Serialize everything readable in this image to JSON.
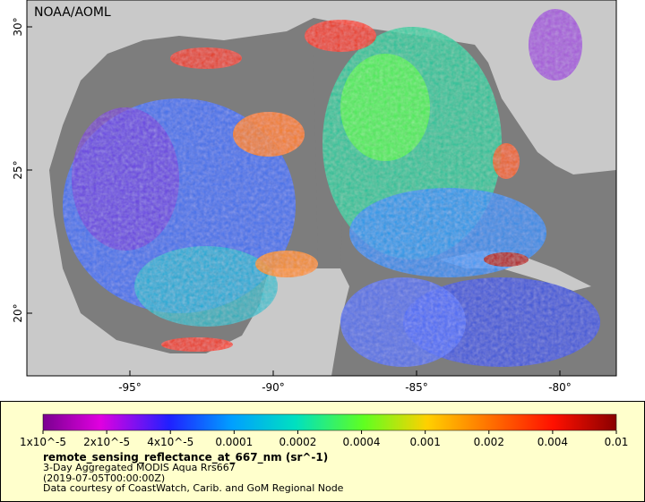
{
  "map": {
    "label": "NOAA/AOML",
    "lat_ticks": [
      {
        "value": 30,
        "label": "30°"
      },
      {
        "value": 25,
        "label": "25°"
      },
      {
        "value": 20,
        "label": "20°"
      }
    ],
    "lon_ticks": [
      {
        "value": -95,
        "label": "-95°"
      },
      {
        "value": -90,
        "label": "-90°"
      },
      {
        "value": -85,
        "label": "-85°"
      },
      {
        "value": -80,
        "label": "-80°"
      }
    ]
  },
  "legend": {
    "colorbar_labels": [
      "1x10^-5",
      "2x10^-5",
      "4x10^-5",
      "0.0001",
      "0.0002",
      "0.0004",
      "0.001",
      "0.002",
      "0.004",
      "0.01"
    ],
    "variable": "remote_sensing_reflectance_at_667_nm (sr^-1)",
    "dataset": "3-Day Aggregated MODIS Aqua Rrs667",
    "time": "(2019-07-05T00:00:00Z)",
    "credit": "Data courtesy of CoastWatch, Carib. and GoM Regional Node"
  }
}
